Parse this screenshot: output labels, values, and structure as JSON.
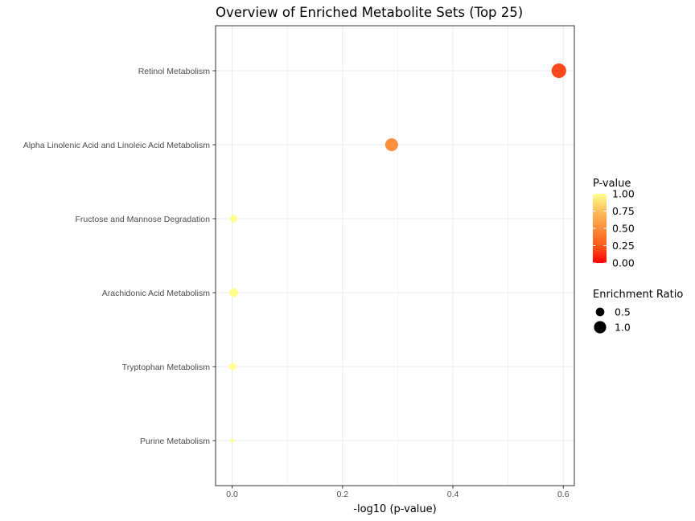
{
  "chart_data": {
    "type": "scatter",
    "title": "Overview of Enriched Metabolite Sets (Top 25)",
    "xlabel": "-log10 (p-value)",
    "ylabel": "",
    "xlim": [
      -0.03,
      0.62
    ],
    "x_ticks": [
      0.0,
      0.2,
      0.4,
      0.6
    ],
    "x_tick_labels": [
      "0.0",
      "0.2",
      "0.4",
      "0.6"
    ],
    "categories": [
      "Retinol Metabolism",
      "Alpha Linolenic Acid and Linoleic Acid Metabolism",
      "Fructose and Mannose Degradation",
      "Arachidonic Acid Metabolism",
      "Tryptophan Metabolism",
      "Purine Metabolism"
    ],
    "points": [
      {
        "category": "Retinol Metabolism",
        "x": 0.592,
        "p_value": 0.256,
        "enrichment_ratio": 1.43
      },
      {
        "category": "Alpha Linolenic Acid and Linoleic Acid Metabolism",
        "x": 0.289,
        "p_value": 0.514,
        "enrichment_ratio": 1.1
      },
      {
        "category": "Fructose and Mannose Degradation",
        "x": 0.003,
        "p_value": 0.993,
        "enrichment_ratio": 0.36
      },
      {
        "category": "Arachidonic Acid Metabolism",
        "x": 0.003,
        "p_value": 0.993,
        "enrichment_ratio": 0.5
      },
      {
        "category": "Tryptophan Metabolism",
        "x": 0.001,
        "p_value": 0.998,
        "enrichment_ratio": 0.35
      },
      {
        "category": "Purine Metabolism",
        "x": 0.0,
        "p_value": 1.0,
        "enrichment_ratio": 0.1
      }
    ],
    "color_legend": {
      "title": "P-value",
      "ticks": [
        1.0,
        0.75,
        0.5,
        0.25,
        0.0
      ],
      "tick_labels": [
        "1.00",
        "0.75",
        "0.50",
        "0.25",
        "0.00"
      ],
      "low_color": "#ff0000",
      "mid_color": "#fd8d3c",
      "high_color": "#ffff8c",
      "placement": "right"
    },
    "size_legend": {
      "title": "Enrichment Ratio",
      "values": [
        0.5,
        1.0
      ],
      "labels": [
        "0.5",
        "1.0"
      ],
      "placement": "right"
    },
    "grid": true,
    "panel_border_color": "#333333",
    "grid_color": "#ebebeb"
  }
}
